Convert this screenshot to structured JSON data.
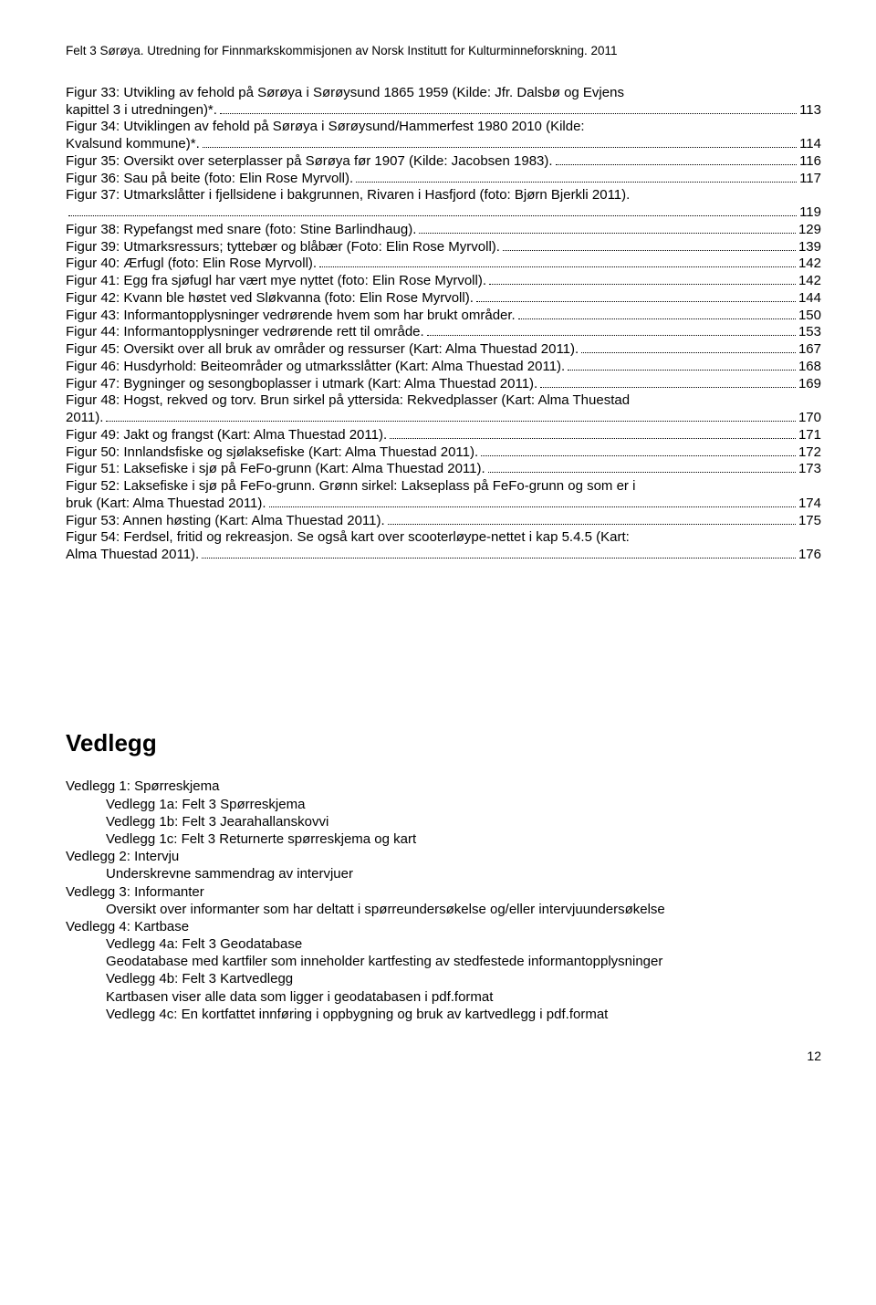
{
  "header": "Felt 3 Sørøya. Utredning for Finnmarkskommisjonen av Norsk Institutt for Kulturminneforskning. 2011",
  "toc": [
    {
      "label_lines": [
        "Figur 33: Utvikling av fehold på Sørøya i Sørøysund 1865 1959 (Kilde: Jfr. Dalsbø og Evjens",
        "kapittel 3 i utredningen)*."
      ],
      "page": "113"
    },
    {
      "label_lines": [
        "Figur 34: Utviklingen av fehold på Sørøya i Sørøysund/Hammerfest 1980 2010 (Kilde:",
        "Kvalsund kommune)*."
      ],
      "page": "114"
    },
    {
      "label_lines": [
        "Figur 35: Oversikt over seterplasser på Sørøya før 1907 (Kilde: Jacobsen 1983). "
      ],
      "page": "116"
    },
    {
      "label_lines": [
        "Figur 36: Sau på beite (foto: Elin Rose Myrvoll)."
      ],
      "page": "117"
    },
    {
      "label_lines": [
        "Figur 37: Utmarkslåtter i fjellsidene i bakgrunnen, Rivaren i Hasfjord (foto: Bjørn Bjerkli 2011).",
        ""
      ],
      "page": "119"
    },
    {
      "label_lines": [
        "Figur 38: Rypefangst med snare (foto: Stine Barlindhaug). "
      ],
      "page": "129"
    },
    {
      "label_lines": [
        "Figur 39: Utmarksressurs; tyttebær og blåbær (Foto: Elin Rose Myrvoll)."
      ],
      "page": "139"
    },
    {
      "label_lines": [
        "Figur 40: Ærfugl (foto: Elin Rose Myrvoll)."
      ],
      "page": "142"
    },
    {
      "label_lines": [
        "Figur 41: Egg fra sjøfugl har vært mye nyttet (foto: Elin Rose Myrvoll). "
      ],
      "page": "142"
    },
    {
      "label_lines": [
        "Figur 42: Kvann ble høstet ved Sløkvanna (foto: Elin Rose Myrvoll)."
      ],
      "page": "144"
    },
    {
      "label_lines": [
        "Figur 43: Informantopplysninger vedrørende hvem som har brukt områder."
      ],
      "page": "150"
    },
    {
      "label_lines": [
        "Figur 44: Informantopplysninger vedrørende rett til område. "
      ],
      "page": "153"
    },
    {
      "label_lines": [
        "Figur 45: Oversikt over all bruk av områder og ressurser (Kart: Alma Thuestad 2011). "
      ],
      "page": "167"
    },
    {
      "label_lines": [
        "Figur 46: Husdyrhold: Beiteområder og utmarksslåtter (Kart: Alma Thuestad 2011)."
      ],
      "page": "168"
    },
    {
      "label_lines": [
        "Figur 47: Bygninger og sesongboplasser i utmark (Kart: Alma Thuestad 2011)."
      ],
      "page": "169"
    },
    {
      "label_lines": [
        "Figur 48: Hogst, rekved og torv. Brun sirkel på yttersida: Rekvedplasser (Kart: Alma Thuestad",
        "2011)."
      ],
      "page": "170"
    },
    {
      "label_lines": [
        "Figur 49: Jakt og frangst (Kart: Alma Thuestad 2011). "
      ],
      "page": "171"
    },
    {
      "label_lines": [
        "Figur 50: Innlandsfiske og sjølaksefiske (Kart: Alma Thuestad 2011)."
      ],
      "page": "172"
    },
    {
      "label_lines": [
        "Figur 51: Laksefiske i sjø på FeFo-grunn (Kart: Alma Thuestad 2011). "
      ],
      "page": "173"
    },
    {
      "label_lines": [
        "Figur 52: Laksefiske i sjø på FeFo-grunn. Grønn sirkel: Lakseplass på FeFo-grunn og som er i",
        "bruk (Kart: Alma Thuestad 2011)."
      ],
      "page": "174"
    },
    {
      "label_lines": [
        "Figur 53: Annen høsting (Kart: Alma Thuestad 2011)."
      ],
      "page": "175"
    },
    {
      "label_lines": [
        "Figur 54: Ferdsel, fritid og rekreasjon. Se også kart over scooterløype-nettet i kap 5.4.5 (Kart:",
        "Alma Thuestad 2011)."
      ],
      "page": "176"
    }
  ],
  "vedlegg_heading": "Vedlegg",
  "vedlegg": [
    {
      "level": 0,
      "text": "Vedlegg 1: Spørreskjema"
    },
    {
      "level": 1,
      "text": "Vedlegg 1a: Felt 3 Spørreskjema"
    },
    {
      "level": 1,
      "text": "Vedlegg 1b: Felt 3 Jearahallanskovvi"
    },
    {
      "level": 1,
      "text": "Vedlegg 1c: Felt 3 Returnerte spørreskjema og kart"
    },
    {
      "level": 0,
      "text": "Vedlegg 2: Intervju"
    },
    {
      "level": 1,
      "text": "Underskrevne sammendrag av intervjuer"
    },
    {
      "level": 0,
      "text": "Vedlegg 3: Informanter"
    },
    {
      "level": 1,
      "text": "Oversikt over informanter som har deltatt i spørreundersøkelse og/eller intervjuundersøkelse"
    },
    {
      "level": 0,
      "text": "Vedlegg 4: Kartbase"
    },
    {
      "level": 1,
      "text": "Vedlegg 4a: Felt 3 Geodatabase"
    },
    {
      "level": 1,
      "text": "Geodatabase med kartfiler som inneholder kartfesting av stedfestede informantopplysninger"
    },
    {
      "level": 1,
      "text": "Vedlegg 4b: Felt 3 Kartvedlegg"
    },
    {
      "level": 1,
      "text": "Kartbasen viser alle data som ligger i geodatabasen i pdf.format"
    },
    {
      "level": 1,
      "text": "Vedlegg 4c: En kortfattet innføring i oppbygning og bruk av kartvedlegg i pdf.format"
    }
  ],
  "page_number": "12"
}
